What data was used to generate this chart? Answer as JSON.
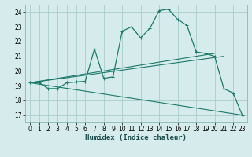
{
  "xlabel": "Humidex (Indice chaleur)",
  "background_color": "#d6ecec",
  "grid_color": "#aacccc",
  "line_color": "#1a7a6a",
  "xlim": [
    -0.5,
    23.5
  ],
  "ylim": [
    16.5,
    24.5
  ],
  "xticks": [
    0,
    1,
    2,
    3,
    4,
    5,
    6,
    7,
    8,
    9,
    10,
    11,
    12,
    13,
    14,
    15,
    16,
    17,
    18,
    19,
    20,
    21,
    22,
    23
  ],
  "yticks": [
    17,
    18,
    19,
    20,
    21,
    22,
    23,
    24
  ],
  "series1_x": [
    0,
    1,
    2,
    3,
    4,
    5,
    6,
    7,
    8,
    9,
    10,
    11,
    12,
    13,
    14,
    15,
    16,
    17,
    18,
    19,
    20,
    21,
    22,
    23
  ],
  "series1_y": [
    19.2,
    19.2,
    18.8,
    18.8,
    19.2,
    19.25,
    19.3,
    21.5,
    19.5,
    19.6,
    22.7,
    23.0,
    22.25,
    22.9,
    24.1,
    24.2,
    23.5,
    23.1,
    21.3,
    21.2,
    21.0,
    18.8,
    18.5,
    17.0
  ],
  "series2_x": [
    0,
    20
  ],
  "series2_y": [
    19.2,
    21.2
  ],
  "series3_x": [
    0,
    21
  ],
  "series3_y": [
    19.2,
    21.0
  ],
  "series4_x": [
    0,
    23
  ],
  "series4_y": [
    19.2,
    17.0
  ]
}
